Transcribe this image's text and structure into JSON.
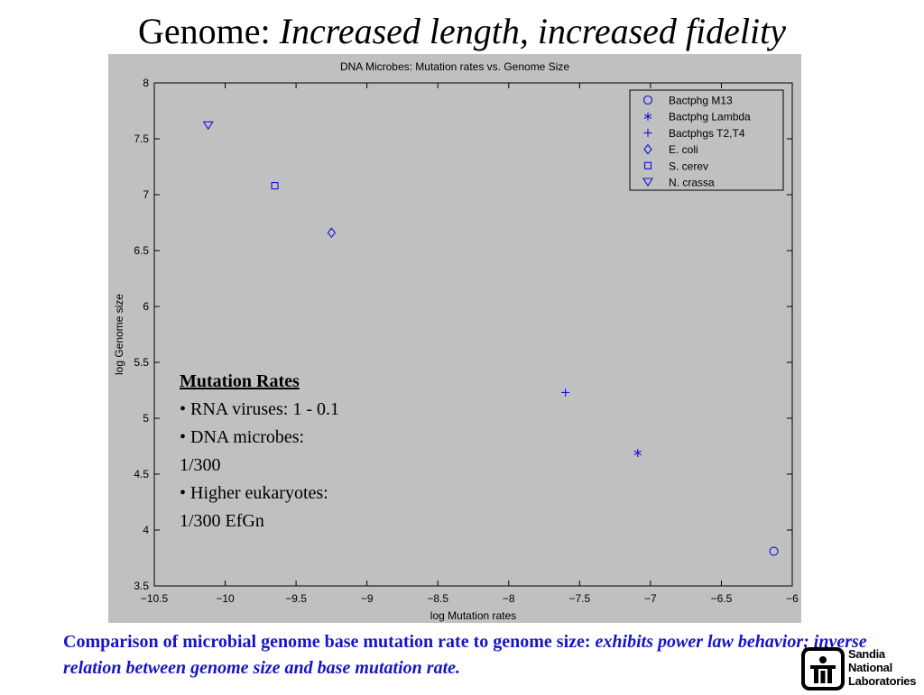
{
  "slide": {
    "title_plain": "Genome:  ",
    "title_italic": "Increased length, increased fidelity"
  },
  "notes": {
    "heading": "Mutation Rates",
    "lines": [
      "• RNA viruses:  1 - 0.1",
      "• DNA microbes:",
      "1/300",
      "• Higher eukaryotes:",
      "1/300 EfGn"
    ]
  },
  "caption": {
    "plain": "Comparison of microbial genome base mutation rate to genome size:  ",
    "italic": "exhibits power law behavior; inverse relation between genome size and base mutation rate."
  },
  "logo": {
    "lines": [
      "Sandia",
      "National",
      "Laboratories"
    ]
  },
  "colors": {
    "plot_bg": "#c0c0c0",
    "marker": "#1010d8",
    "caption": "#1515c8"
  },
  "chart_data": {
    "type": "scatter",
    "title": "DNA Microbes: Mutation rates vs. Genome Size",
    "xlabel": "log Mutation rates",
    "ylabel": "log Genome size",
    "xlim": [
      -10.5,
      -6
    ],
    "ylim": [
      3.5,
      8
    ],
    "xticks": [
      -10.5,
      -10,
      -9.5,
      -9,
      -8.5,
      -8,
      -7.5,
      -7,
      -6.5,
      -6
    ],
    "xtick_labels": [
      "−10.5",
      "−10",
      "−9.5",
      "−9",
      "−8.5",
      "−8",
      "−7.5",
      "−7",
      "−6.5",
      "−6"
    ],
    "yticks": [
      3.5,
      4,
      4.5,
      5,
      5.5,
      6,
      6.5,
      7,
      7.5,
      8
    ],
    "ytick_labels": [
      "3.5",
      "4",
      "4.5",
      "5",
      "5.5",
      "6",
      "6.5",
      "7",
      "7.5",
      "8"
    ],
    "grid": false,
    "legend_position": "top-right",
    "series": [
      {
        "name": "Bactphg M13",
        "marker": "circle",
        "x": -6.13,
        "y": 3.81
      },
      {
        "name": "Bactphg Lambda",
        "marker": "asterisk",
        "x": -7.09,
        "y": 4.69
      },
      {
        "name": "Bactphgs T2,T4",
        "marker": "plus",
        "x": -7.6,
        "y": 5.23
      },
      {
        "name": "E. coli",
        "marker": "diamond",
        "x": -9.25,
        "y": 6.66
      },
      {
        "name": "S. cerev",
        "marker": "square",
        "x": -9.65,
        "y": 7.08
      },
      {
        "name": "N. crassa",
        "marker": "triangle-down",
        "x": -10.12,
        "y": 7.62
      }
    ]
  }
}
